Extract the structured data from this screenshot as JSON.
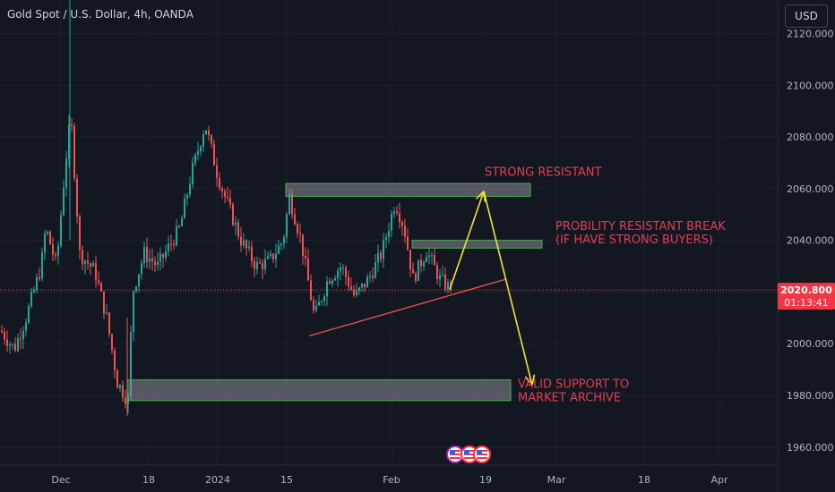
{
  "header": {
    "title": "Gold Spot / U.S. Dollar, 4h, OANDA",
    "currency": "USD"
  },
  "colors": {
    "background": "#131722",
    "up": "#26a69a",
    "down": "#ef5350",
    "annotation_text": "#e04050",
    "arrow": "#f2e33a",
    "zone_border": "#4caf50",
    "zone_fill": "#8a8d94",
    "trendline": "#ef5350",
    "price_tag": "#f23645"
  },
  "price_tag": {
    "price": "2020.800",
    "countdown": "01:13:41"
  },
  "icons": [
    "flag-us-icon",
    "flag-us-icon",
    "flag-us-icon"
  ],
  "chart_data": {
    "type": "candlestick",
    "symbol": "Gold Spot / U.S. Dollar",
    "interval": "4h",
    "ylim": [
      1953,
      2133
    ],
    "yticks": [
      "2120.000",
      "2100.000",
      "2080.000",
      "2060.000",
      "2040.000",
      "2020.000",
      "2000.000",
      "1980.000",
      "1960.000"
    ],
    "xticks": [
      {
        "label": "Dec",
        "t": 68
      },
      {
        "label": "18",
        "t": 166
      },
      {
        "label": "2024",
        "t": 243
      },
      {
        "label": "15",
        "t": 320
      },
      {
        "label": "Feb",
        "t": 437
      },
      {
        "label": "19",
        "t": 542
      },
      {
        "label": "Mar",
        "t": 621
      },
      {
        "label": "18",
        "t": 719
      },
      {
        "label": "Apr",
        "t": 803
      }
    ],
    "key_prices": [
      {
        "t": 0,
        "p": 2005
      },
      {
        "t": 15,
        "p": 1998
      },
      {
        "t": 28,
        "p": 2010
      },
      {
        "t": 45,
        "p": 2030
      },
      {
        "t": 50,
        "p": 2045
      },
      {
        "t": 62,
        "p": 2030
      },
      {
        "t": 72,
        "p": 2070
      },
      {
        "t": 78,
        "p": 2088
      },
      {
        "t": 88,
        "p": 2035
      },
      {
        "t": 105,
        "p": 2028
      },
      {
        "t": 118,
        "p": 2010
      },
      {
        "t": 130,
        "p": 1985
      },
      {
        "t": 142,
        "p": 1978
      },
      {
        "t": 147,
        "p": 2020
      },
      {
        "t": 160,
        "p": 2035
      },
      {
        "t": 175,
        "p": 2030
      },
      {
        "t": 200,
        "p": 2045
      },
      {
        "t": 212,
        "p": 2065
      },
      {
        "t": 228,
        "p": 2085
      },
      {
        "t": 242,
        "p": 2065
      },
      {
        "t": 252,
        "p": 2055
      },
      {
        "t": 268,
        "p": 2040
      },
      {
        "t": 285,
        "p": 2030
      },
      {
        "t": 300,
        "p": 2032
      },
      {
        "t": 315,
        "p": 2040
      },
      {
        "t": 322,
        "p": 2057
      },
      {
        "t": 335,
        "p": 2040
      },
      {
        "t": 350,
        "p": 2010
      },
      {
        "t": 365,
        "p": 2025
      },
      {
        "t": 380,
        "p": 2030
      },
      {
        "t": 395,
        "p": 2018
      },
      {
        "t": 410,
        "p": 2025
      },
      {
        "t": 425,
        "p": 2035
      },
      {
        "t": 440,
        "p": 2055
      },
      {
        "t": 450,
        "p": 2045
      },
      {
        "t": 460,
        "p": 2025
      },
      {
        "t": 475,
        "p": 2036
      },
      {
        "t": 490,
        "p": 2025
      },
      {
        "t": 502,
        "p": 2021
      }
    ],
    "zones": [
      {
        "label": "STRONG RESISTANT",
        "t0": 319,
        "t1": 592,
        "p_top": 2062,
        "p_bottom": 2057
      },
      {
        "label": "PROBILITY RESISTANT BREAK",
        "t0": 460,
        "t1": 605,
        "p_top": 2040,
        "p_bottom": 2037
      },
      {
        "label": "VALID SUPPORT TO MARKET ARCHIVE",
        "t0": 142,
        "t1": 570,
        "p_top": 1986,
        "p_bottom": 1978
      }
    ],
    "trendline": {
      "t0": 345,
      "p0": 2003,
      "t1": 565,
      "p1": 2025
    },
    "projection": [
      {
        "t": 502,
        "p": 2021
      },
      {
        "t": 540,
        "p": 2059
      },
      {
        "t": 594,
        "p": 1984
      }
    ],
    "annotations": [
      {
        "lines": [
          "STRONG RESISTANT"
        ],
        "t": 541,
        "p": 2065
      },
      {
        "lines": [
          "PROBILITY RESISTANT BREAK",
          "(IF HAVE STRONG BUYERS)"
        ],
        "t": 620,
        "p": 2044
      },
      {
        "lines": [
          "VALID SUPPORT TO",
          "MARKET ARCHIVE"
        ],
        "t": 578,
        "p": 1983
      }
    ],
    "last_price": 2020.8
  }
}
